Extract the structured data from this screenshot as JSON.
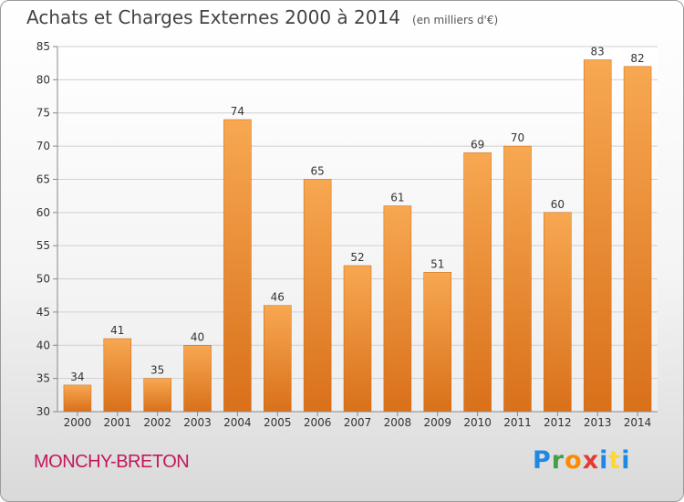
{
  "header": {
    "title": "Achats et Charges Externes 2000 à 2014",
    "unit": "(en milliers d'€)"
  },
  "footer": {
    "commune": "MONCHY-BRETON",
    "logo_letters": [
      "P",
      "r",
      "o",
      "x",
      "i",
      "t",
      "i"
    ],
    "logo_colors": [
      "#1e88e5",
      "#43a047",
      "#fb8c00",
      "#e53935",
      "#1e88e5",
      "#fdd835",
      "#1e88e5"
    ]
  },
  "colors": {
    "bar_light": "#f7a851",
    "bar_dark": "#d9701a",
    "grid": "#d0d0d0",
    "axis": "#888888"
  },
  "chart_data": {
    "type": "bar",
    "title": "Achats et Charges Externes 2000 à 2014",
    "subtitle": "(en milliers d'€)",
    "categories": [
      "2000",
      "2001",
      "2002",
      "2003",
      "2004",
      "2005",
      "2006",
      "2007",
      "2008",
      "2009",
      "2010",
      "2011",
      "2012",
      "2013",
      "2014"
    ],
    "values": [
      34,
      41,
      35,
      40,
      74,
      46,
      65,
      52,
      61,
      51,
      69,
      70,
      60,
      83,
      82
    ],
    "ylim": [
      30,
      85
    ],
    "yticks": [
      30,
      35,
      40,
      45,
      50,
      55,
      60,
      65,
      70,
      75,
      80,
      85
    ],
    "grid": true,
    "legend": "none"
  }
}
